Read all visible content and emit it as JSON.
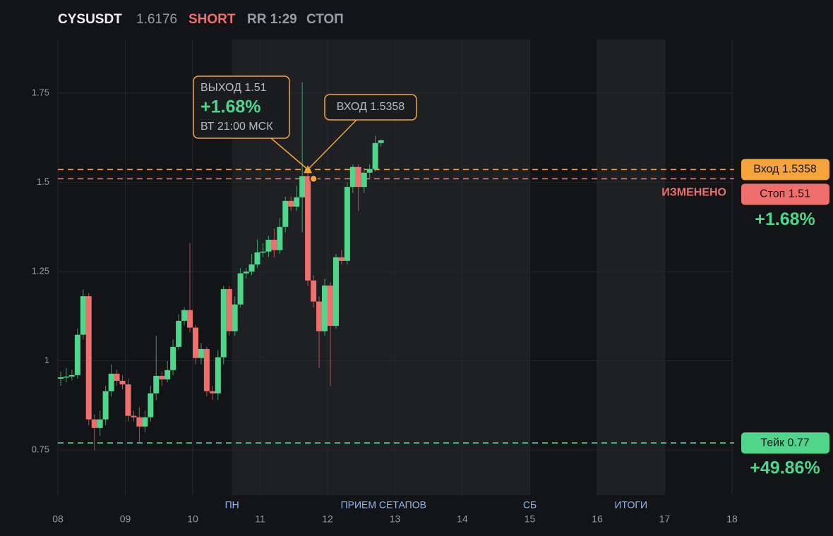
{
  "chart_data": {
    "type": "candlestick",
    "header": {
      "symbol": "CYSUSDT",
      "price": "1.6176",
      "side": "SHORT",
      "rr": "RR 1:29",
      "status": "СТОП"
    },
    "x": [
      8.042,
      8.125,
      8.208,
      8.292,
      8.375,
      8.458,
      8.542,
      8.625,
      8.708,
      8.792,
      8.875,
      8.958,
      9.042,
      9.125,
      9.208,
      9.292,
      9.375,
      9.458,
      9.542,
      9.625,
      9.708,
      9.792,
      9.875,
      9.958,
      10.042,
      10.125,
      10.208,
      10.292,
      10.375,
      10.458,
      10.542,
      10.625,
      10.708,
      10.792,
      10.875,
      10.958,
      11.042,
      11.125,
      11.208,
      11.292,
      11.375,
      11.458,
      11.542,
      11.625,
      11.708,
      11.792,
      11.875,
      11.958,
      12.042,
      12.125,
      12.208,
      12.292,
      12.375,
      12.458,
      12.542,
      12.625,
      12.708,
      12.792
    ],
    "open": [
      0.95,
      0.954,
      0.956,
      0.96,
      1.073,
      1.181,
      0.836,
      0.812,
      0.836,
      0.915,
      0.964,
      0.944,
      0.934,
      0.846,
      0.842,
      0.816,
      0.842,
      0.909,
      0.958,
      0.948,
      0.974,
      1.039,
      1.112,
      1.142,
      1.093,
      1.008,
      1.033,
      0.915,
      0.909,
      1.01,
      1.201,
      1.083,
      1.158,
      1.245,
      1.25,
      1.27,
      1.304,
      1.306,
      1.339,
      1.31,
      1.375,
      1.448,
      1.432,
      1.458,
      1.517,
      1.225,
      1.166,
      1.083,
      1.211,
      1.098,
      1.29,
      1.28,
      1.487,
      1.543,
      1.487,
      1.527,
      1.537,
      1.61
    ],
    "high": [
      0.97,
      0.98,
      0.975,
      1.09,
      1.2,
      1.19,
      0.85,
      0.86,
      0.93,
      0.99,
      0.975,
      0.96,
      0.95,
      0.86,
      0.87,
      0.86,
      0.93,
      1.07,
      0.97,
      1.0,
      1.06,
      1.13,
      1.15,
      1.33,
      1.1,
      1.05,
      1.04,
      0.93,
      1.03,
      1.21,
      1.21,
      1.18,
      1.26,
      1.26,
      1.3,
      1.34,
      1.33,
      1.35,
      1.37,
      1.4,
      1.46,
      1.46,
      1.49,
      1.78,
      1.53,
      1.24,
      1.18,
      1.23,
      1.22,
      1.3,
      1.31,
      1.5,
      1.55,
      1.55,
      1.54,
      1.55,
      1.63,
      1.62
    ],
    "low": [
      0.93,
      0.94,
      0.945,
      0.95,
      1.06,
      0.82,
      0.75,
      0.79,
      0.82,
      0.9,
      0.93,
      0.92,
      0.83,
      0.83,
      0.77,
      0.8,
      0.83,
      0.89,
      0.93,
      0.94,
      0.96,
      1.03,
      1.1,
      1.08,
      0.99,
      0.99,
      0.9,
      0.89,
      0.89,
      0.99,
      1.07,
      1.07,
      1.15,
      1.23,
      1.24,
      1.26,
      1.29,
      1.29,
      1.29,
      1.3,
      1.36,
      1.42,
      1.42,
      1.36,
      1.21,
      1.15,
      0.98,
      1.07,
      0.93,
      1.09,
      1.27,
      1.27,
      1.47,
      1.42,
      1.47,
      1.51,
      1.53,
      1.6
    ],
    "close": [
      0.954,
      0.956,
      0.96,
      1.073,
      1.181,
      0.836,
      0.812,
      0.836,
      0.915,
      0.964,
      0.944,
      0.934,
      0.846,
      0.842,
      0.816,
      0.842,
      0.909,
      0.958,
      0.948,
      0.974,
      1.039,
      1.112,
      1.142,
      1.093,
      1.008,
      1.033,
      0.915,
      0.909,
      1.01,
      1.201,
      1.083,
      1.158,
      1.245,
      1.25,
      1.27,
      1.304,
      1.306,
      1.339,
      1.31,
      1.375,
      1.448,
      1.432,
      1.458,
      1.517,
      1.225,
      1.166,
      1.083,
      1.211,
      1.098,
      1.29,
      1.28,
      1.487,
      1.543,
      1.487,
      1.527,
      1.537,
      1.61,
      1.6176
    ],
    "up_color": "#4fd68a",
    "down_color": "#ef6f6c",
    "xlim": [
      8,
      18
    ],
    "xticks": [
      {
        "value": 8,
        "label": "08"
      },
      {
        "value": 9,
        "label": "09"
      },
      10,
      11,
      12,
      13,
      14,
      15,
      16,
      17,
      18
    ],
    "ylim": [
      0.624,
      1.9
    ],
    "yticks": [
      0.75,
      1,
      1.25,
      1.5,
      1.75
    ],
    "grid": true,
    "shaded_ranges": [
      [
        10.583,
        15
      ],
      [
        16,
        17
      ]
    ],
    "period_labels": [
      {
        "x": 10.583,
        "label": "ПН"
      },
      {
        "x": 12.83,
        "label": "ПРИЕМ СЕТАПОВ"
      },
      {
        "x": 15,
        "label": "СБ"
      },
      {
        "x": 16.5,
        "label": "ИТОГИ"
      }
    ],
    "levels": [
      {
        "name": "Вход 1.5358",
        "value": 1.5358,
        "color": "#f5a43c"
      },
      {
        "name": "Стоп 1.51",
        "value": 1.51,
        "color": "#ef6f6c",
        "note": "ИЗМЕНЕНО",
        "pnl": "+1.68%"
      },
      {
        "name": "Тейк 0.77",
        "value": 0.77,
        "color": "#4fd68a",
        "pnl": "+49.86%"
      }
    ],
    "markers": [
      {
        "shape": "triangle",
        "x": 11.708,
        "y": 1.5358,
        "color": "#f5a43c"
      },
      {
        "shape": "circle",
        "x": 11.792,
        "y": 1.51,
        "color": "#f5a43c"
      }
    ],
    "callouts": {
      "exit": {
        "title": "ВЫХОД 1.51",
        "pnl": "+1.68%",
        "time": "ВТ 21:00 МСК"
      },
      "entry": {
        "title": "ВХОД 1.5358"
      }
    }
  }
}
